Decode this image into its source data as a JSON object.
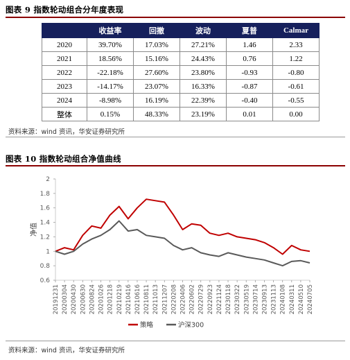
{
  "figure9": {
    "title": "图表 9  指数轮动组合分年度表现",
    "columns": [
      "",
      "收益率",
      "回撤",
      "波动",
      "夏普",
      "Calmar"
    ],
    "rows": [
      [
        "2020",
        "39.70%",
        "17.03%",
        "27.21%",
        "1.46",
        "2.33"
      ],
      [
        "2021",
        "18.56%",
        "15.16%",
        "24.43%",
        "0.76",
        "1.22"
      ],
      [
        "2022",
        "-22.18%",
        "27.60%",
        "23.80%",
        "-0.93",
        "-0.80"
      ],
      [
        "2023",
        "-14.17%",
        "23.07%",
        "16.33%",
        "-0.87",
        "-0.61"
      ],
      [
        "2024",
        "-8.98%",
        "16.19%",
        "22.39%",
        "-0.40",
        "-0.55"
      ],
      [
        "整体",
        "0.15%",
        "48.33%",
        "23.19%",
        "0.01",
        "0.00"
      ]
    ],
    "source": "资料来源：wind 资讯，华安证券研究所"
  },
  "figure10": {
    "title": "图表 10  指数轮动组合净值曲线",
    "source": "资料来源：wind 资讯，华安证券研究所"
  },
  "colors": {
    "header_bg": "#16205c",
    "rule": "#8b0000",
    "strategy": "#c00000",
    "benchmark": "#595959"
  },
  "chart_data": {
    "type": "line",
    "ylabel": "净值",
    "ylim": [
      0.6,
      2
    ],
    "yticks": [
      "0.6",
      "0.8",
      "1",
      "1.2",
      "1.4",
      "1.6",
      "1.8",
      "2"
    ],
    "x": [
      "20191231",
      "20200304",
      "20200430",
      "20200630",
      "20200824",
      "20201026",
      "20201218",
      "20210219",
      "20210416",
      "20210616",
      "20210811",
      "20211013",
      "20211207",
      "20220208",
      "20220406",
      "20220602",
      "20220729",
      "20220923",
      "20221124",
      "20230118",
      "20230322",
      "20230519",
      "20230714",
      "20230913",
      "20231113",
      "20240108",
      "20240311",
      "20240510",
      "20240705"
    ],
    "legend": [
      "策略",
      "沪深300"
    ],
    "legend_position": "bottom",
    "series": [
      {
        "name": "策略",
        "values": [
          1.0,
          1.05,
          1.02,
          1.22,
          1.35,
          1.32,
          1.5,
          1.62,
          1.45,
          1.6,
          1.72,
          1.7,
          1.68,
          1.5,
          1.3,
          1.38,
          1.36,
          1.25,
          1.22,
          1.25,
          1.2,
          1.18,
          1.16,
          1.12,
          1.05,
          0.96,
          1.08,
          1.02,
          1.0
        ]
      },
      {
        "name": "沪深300",
        "values": [
          1.0,
          0.96,
          1.0,
          1.1,
          1.17,
          1.22,
          1.3,
          1.42,
          1.28,
          1.3,
          1.22,
          1.2,
          1.18,
          1.08,
          1.02,
          1.05,
          0.98,
          0.95,
          0.93,
          0.98,
          0.95,
          0.92,
          0.9,
          0.88,
          0.84,
          0.8,
          0.86,
          0.87,
          0.84
        ]
      }
    ]
  }
}
